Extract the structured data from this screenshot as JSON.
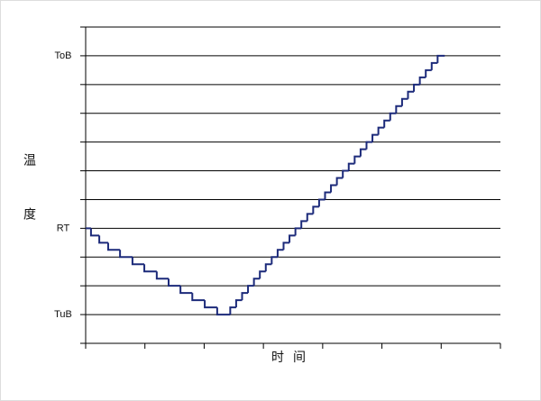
{
  "chart_data": {
    "type": "line",
    "step": "post",
    "xlabel": "时间",
    "ylabel": "温度",
    "x": [
      0,
      0.09,
      0.23,
      0.38,
      0.58,
      0.79,
      0.99,
      1.2,
      1.4,
      1.6,
      1.8,
      2.01,
      2.22,
      2.44,
      2.54,
      2.64,
      2.74,
      2.84,
      2.94,
      3.04,
      3.14,
      3.24,
      3.34,
      3.44,
      3.54,
      3.64,
      3.74,
      3.84,
      3.94,
      4.04,
      4.14,
      4.24,
      4.34,
      4.44,
      4.54,
      4.64,
      4.74,
      4.84,
      4.94,
      5.04,
      5.14,
      5.24,
      5.34,
      5.44,
      5.54,
      5.64,
      5.74,
      5.84,
      5.94,
      6.06
    ],
    "values": [
      4,
      3.75,
      3.5,
      3.25,
      3,
      2.75,
      2.5,
      2.25,
      2,
      1.75,
      1.5,
      1.25,
      1,
      1.25,
      1.5,
      1.75,
      2,
      2.25,
      2.5,
      2.75,
      3,
      3.25,
      3.5,
      3.75,
      4,
      4.25,
      4.5,
      4.75,
      5,
      5.25,
      5.5,
      5.75,
      6,
      6.25,
      6.5,
      6.75,
      7,
      7.25,
      7.5,
      7.75,
      8,
      8.25,
      8.5,
      8.75,
      9,
      9.25,
      9.5,
      9.75,
      10,
      10
    ],
    "color": "#1c2a7a",
    "xlim": [
      0,
      7
    ],
    "ylim": [
      0,
      11
    ],
    "yticks": [
      {
        "value": 1,
        "label": "TuB"
      },
      {
        "value": 4,
        "label": "RT"
      },
      {
        "value": 10,
        "label": "ToB"
      }
    ],
    "minor_yticks": [
      0,
      2,
      3,
      5,
      6,
      7,
      8,
      9,
      11
    ],
    "minor_xticks": [
      0,
      1,
      2,
      3,
      4,
      5,
      6,
      7
    ],
    "grid": true
  }
}
